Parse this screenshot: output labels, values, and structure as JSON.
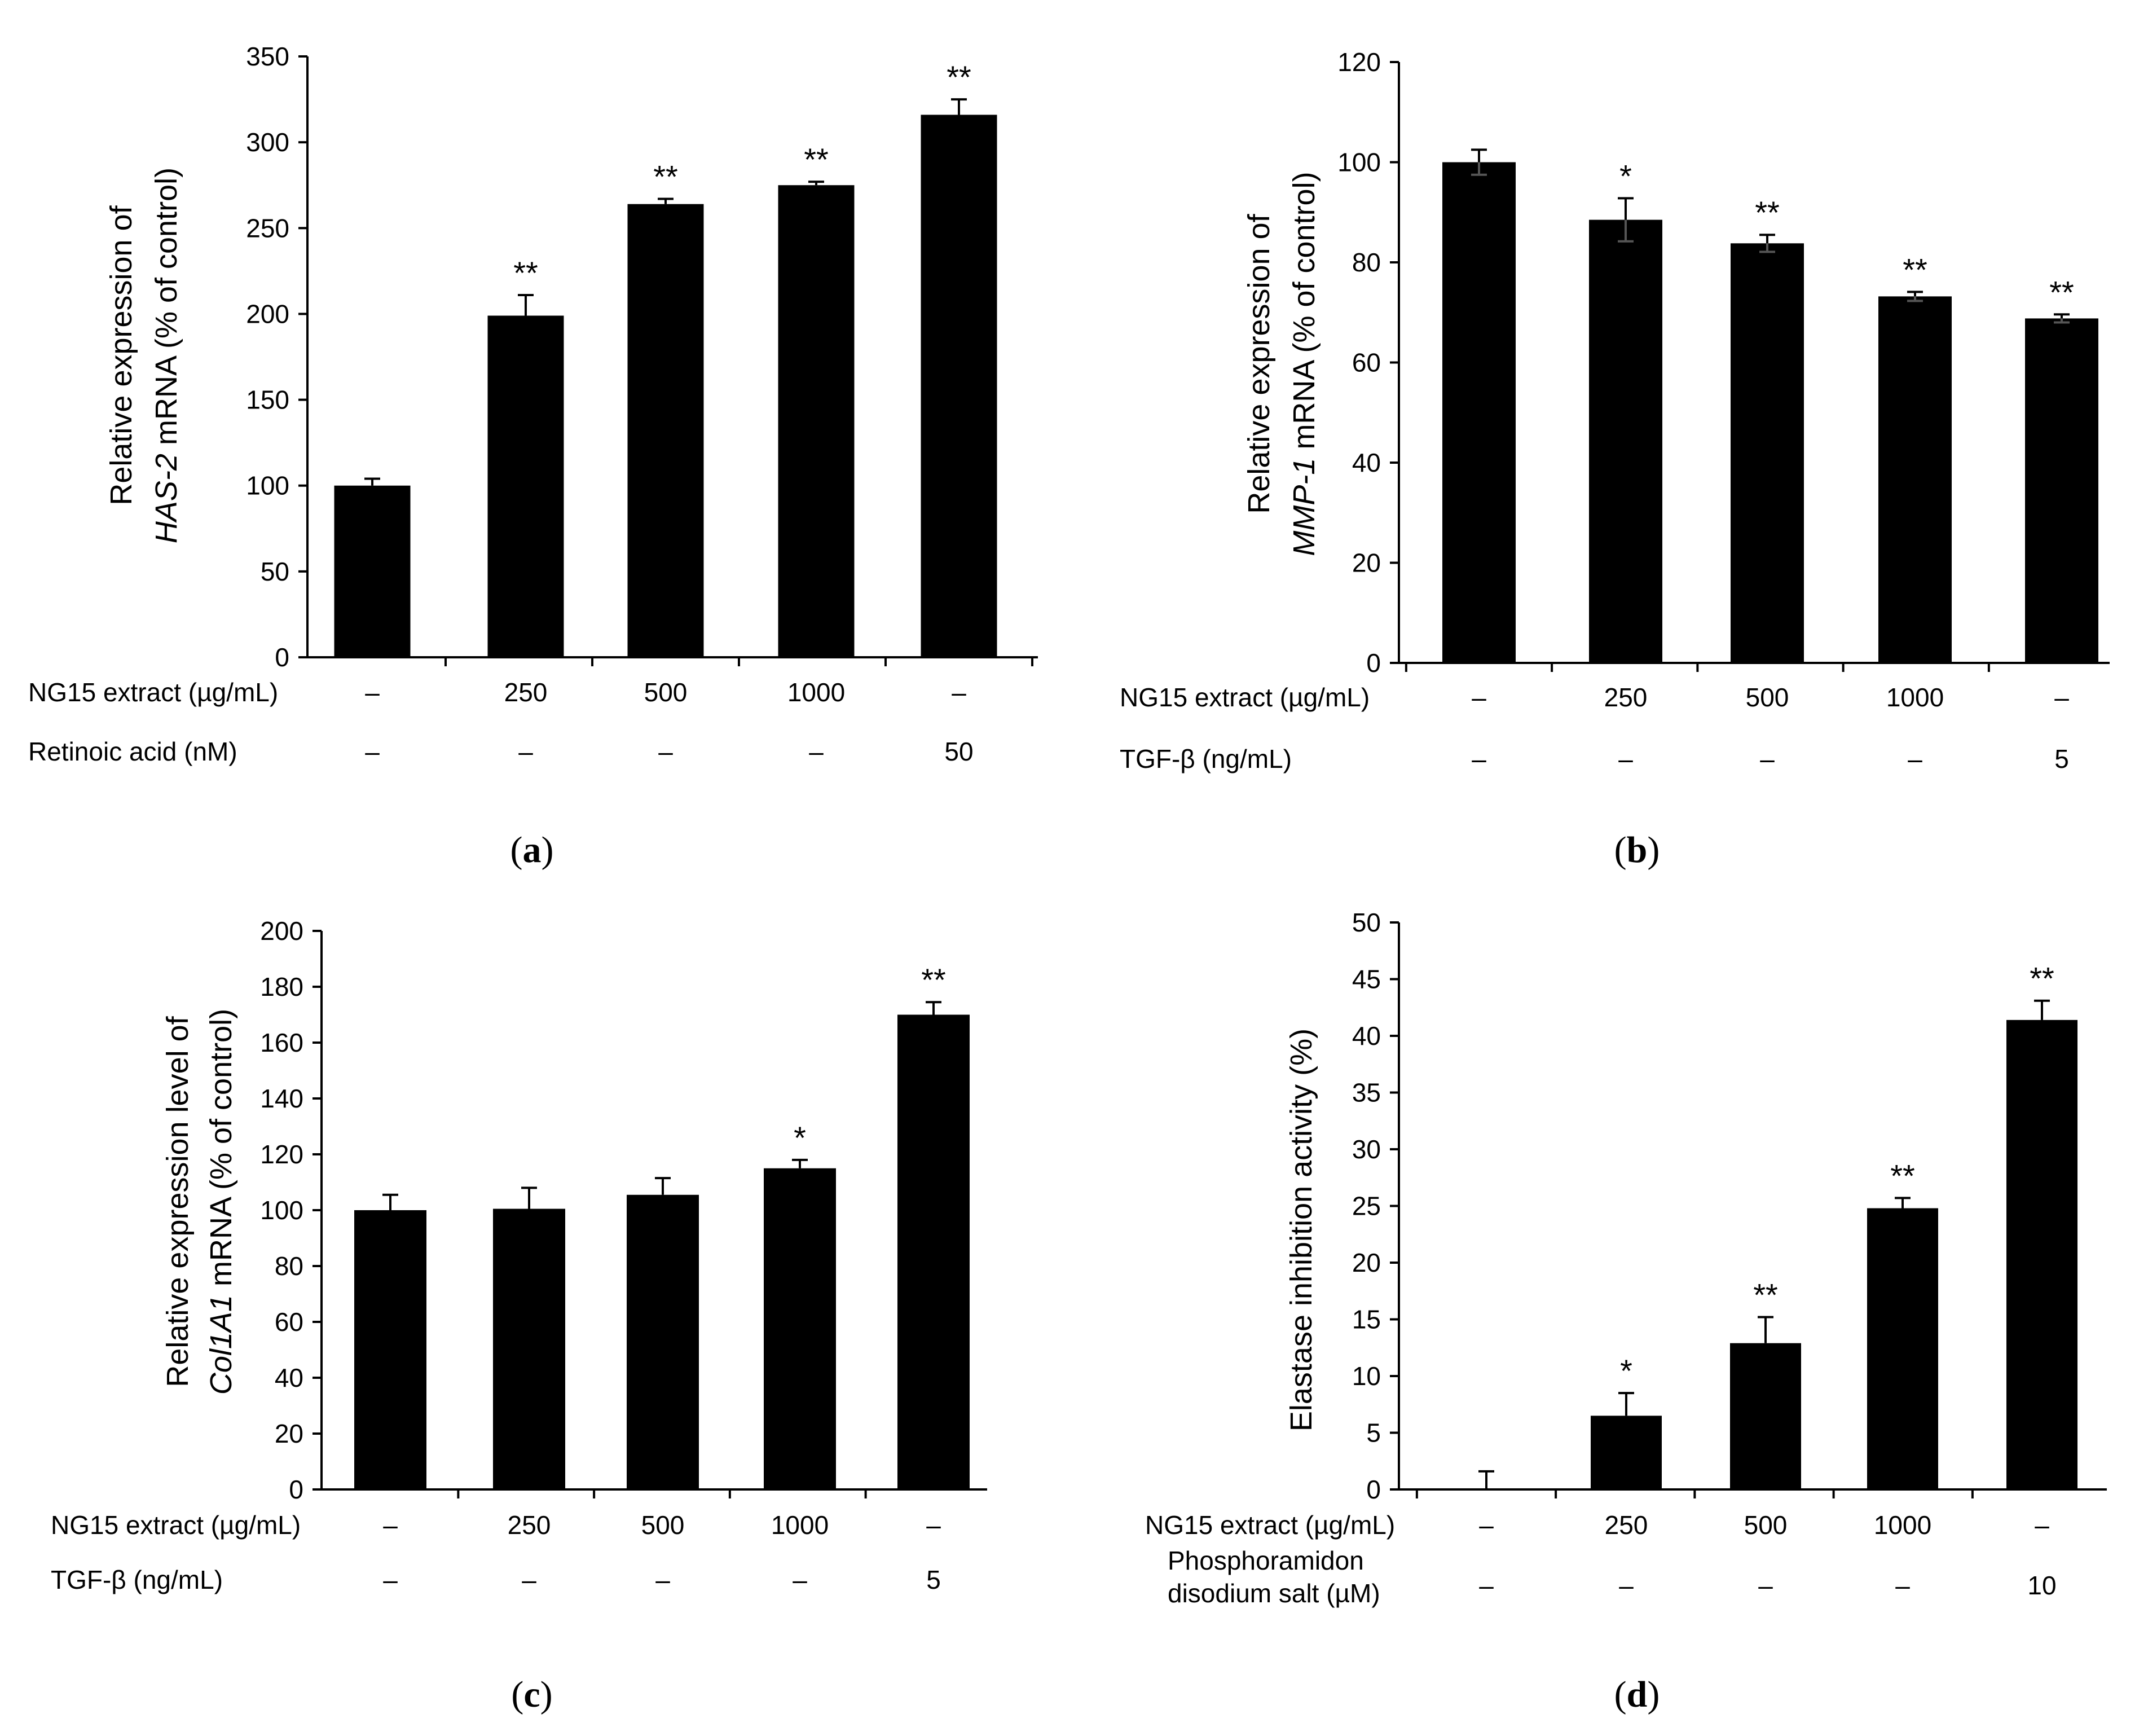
{
  "figure": {
    "bar_color": "#000000",
    "background": "#ffffff"
  },
  "chart_data": [
    {
      "type": "bar",
      "panel": "(a)",
      "panel_label": "a",
      "ylabel_lines": [
        "Relative expression of",
        "HAS-2 mRNA  (% of control)"
      ],
      "ylabel_parts": [
        [
          "Relative expression of"
        ],
        [
          {
            "text": "HAS-2",
            "italic": true
          },
          {
            "text": " mRNA  (% of control)",
            "italic": false
          }
        ]
      ],
      "ylim": [
        0,
        350
      ],
      "yticks": [
        0,
        50,
        100,
        150,
        200,
        250,
        300,
        350
      ],
      "values": [
        100,
        199,
        264,
        275,
        316
      ],
      "errors": [
        4,
        12,
        3,
        2,
        9
      ],
      "significance": [
        "",
        "**",
        "**",
        "**",
        "**"
      ],
      "condition_rows": [
        {
          "label": "NG15 extract  (µg/mL)",
          "values": [
            "–",
            "250",
            "500",
            "1000",
            "–"
          ]
        },
        {
          "label": "Retinoic acid (nM)",
          "values": [
            "–",
            "–",
            "–",
            "–",
            "50"
          ]
        }
      ]
    },
    {
      "type": "bar",
      "panel": "(b)",
      "panel_label": "b",
      "ylabel_parts": [
        [
          "Relative expression of"
        ],
        [
          {
            "text": "MMP-1",
            "italic": true
          },
          {
            "text": " mRNA (% of control)",
            "italic": false
          }
        ]
      ],
      "ylim": [
        0,
        120
      ],
      "yticks": [
        0,
        20,
        40,
        60,
        80,
        100,
        120
      ],
      "values": [
        100,
        88.5,
        83.8,
        73.2,
        68.8
      ],
      "errors": [
        2.5,
        4.3,
        1.7,
        0.9,
        0.8
      ],
      "errors_capped": true,
      "significance": [
        "",
        "*",
        "**",
        "**",
        "**"
      ],
      "condition_rows": [
        {
          "label": "NG15 extract  (µg/mL)",
          "values": [
            "–",
            "250",
            "500",
            "1000",
            "–"
          ]
        },
        {
          "label": "TGF-β  (ng/mL)",
          "values": [
            "–",
            "–",
            "–",
            "–",
            "5"
          ]
        }
      ]
    },
    {
      "type": "bar",
      "panel": "(c)",
      "panel_label": "c",
      "ylabel_parts": [
        [
          "Relative expression level of"
        ],
        [
          {
            "text": "Col1A1",
            "italic": true
          },
          {
            "text": " mRNA (% of control)",
            "italic": false
          }
        ]
      ],
      "ylim": [
        0,
        200
      ],
      "yticks": [
        0,
        20,
        40,
        60,
        80,
        100,
        120,
        140,
        160,
        180,
        200
      ],
      "values": [
        100,
        100.5,
        105.5,
        115,
        170
      ],
      "errors": [
        5.5,
        7.5,
        6,
        3,
        4.5
      ],
      "significance": [
        "",
        "",
        "",
        "*",
        "**"
      ],
      "condition_rows": [
        {
          "label": "NG15 extract (µg/mL)",
          "values": [
            "–",
            "250",
            "500",
            "1000",
            "–"
          ]
        },
        {
          "label": "TGF-β (ng/mL)",
          "values": [
            "–",
            "–",
            "–",
            "–",
            "5"
          ]
        }
      ]
    },
    {
      "type": "bar",
      "panel": "(d)",
      "panel_label": "d",
      "ylabel_parts": [
        [
          "Elastase inhibition activity (%)"
        ]
      ],
      "ylim": [
        0,
        50
      ],
      "yticks": [
        0,
        5,
        10,
        15,
        20,
        25,
        30,
        35,
        40,
        45,
        50
      ],
      "values": [
        0,
        6.5,
        12.9,
        24.8,
        41.4
      ],
      "errors": [
        1.6,
        2,
        2.3,
        0.9,
        1.7
      ],
      "significance": [
        "",
        "*",
        "**",
        "**",
        "**"
      ],
      "condition_rows": [
        {
          "label": "NG15 extract (µg/mL)",
          "values": [
            "–",
            "250",
            "500",
            "1000",
            "–"
          ]
        },
        {
          "label_lines": [
            "Phosphoramidon",
            "disodium salt (µM)"
          ],
          "label": "Phosphoramidon disodium salt (µM)",
          "values": [
            "–",
            "–",
            "–",
            "–",
            "10"
          ]
        }
      ]
    }
  ]
}
